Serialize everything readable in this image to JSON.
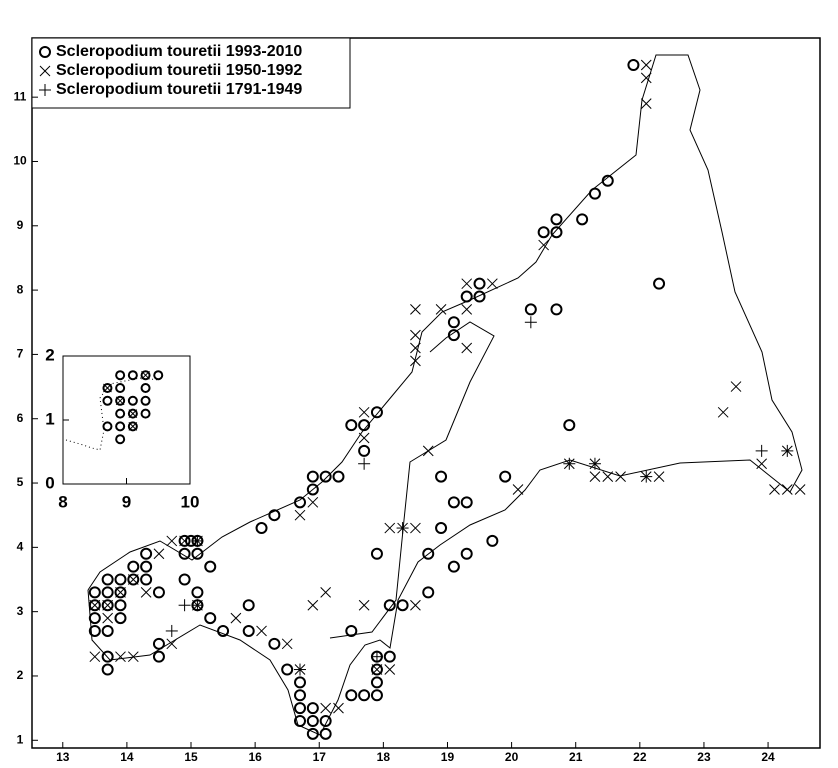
{
  "chart_data": [
    {
      "type": "scatter",
      "xlim": [
        12.52,
        24.81
      ],
      "ylim": [
        0.88,
        11.92
      ],
      "xticks": [
        13,
        14,
        15,
        16,
        17,
        18,
        19,
        20,
        21,
        22,
        23,
        24
      ],
      "yticks": [
        1,
        2,
        3,
        4,
        5,
        6,
        7,
        8,
        9,
        10,
        11
      ],
      "legend": "upper left",
      "series": [
        {
          "name": "Scleropodium touretii 1993-2010",
          "color": "#000000",
          "marker": "o",
          "x": [
            21.9,
            21.5,
            21.3,
            21.1,
            20.7,
            20.7,
            20.5,
            22.3,
            19.5,
            19.3,
            19.5,
            20.3,
            20.7,
            19.1,
            19.1,
            20.9,
            18.9,
            19.9,
            19.1,
            19.3,
            18.9,
            19.7,
            19.3,
            18.7,
            17.9,
            19.1,
            18.7,
            18.1,
            18.3,
            17.9,
            17.5,
            17.7,
            17.7,
            17.3,
            17.1,
            16.9,
            16.9,
            16.7,
            16.3,
            16.1,
            15.3,
            15.1,
            15.0,
            14.9,
            14.9,
            15.1,
            14.9,
            15.1,
            14.5,
            14.3,
            14.3,
            14.3,
            14.1,
            14.1,
            13.9,
            13.9,
            13.9,
            13.9,
            13.7,
            13.7,
            13.7,
            13.7,
            13.5,
            13.5,
            13.5,
            13.5,
            13.7,
            13.7,
            14.5,
            14.5,
            15.1,
            15.3,
            15.5,
            15.9,
            15.9,
            16.3,
            16.5,
            16.7,
            16.7,
            16.7,
            16.7,
            16.9,
            16.9,
            16.9,
            17.1,
            17.1,
            17.5,
            17.7,
            17.9,
            17.9,
            17.9,
            17.9,
            18.1,
            17.5
          ],
          "y": [
            11.5,
            9.7,
            9.5,
            9.1,
            9.1,
            8.9,
            8.9,
            8.1,
            8.1,
            7.9,
            7.9,
            7.7,
            7.7,
            7.5,
            7.3,
            5.9,
            5.1,
            5.1,
            4.7,
            4.7,
            4.3,
            4.1,
            3.9,
            3.9,
            3.9,
            3.7,
            3.3,
            3.1,
            3.1,
            6.1,
            5.9,
            5.9,
            5.5,
            5.1,
            5.1,
            5.1,
            4.9,
            4.7,
            4.5,
            4.3,
            3.7,
            4.1,
            4.1,
            4.1,
            3.9,
            3.9,
            3.5,
            3.3,
            3.3,
            3.9,
            3.7,
            3.5,
            3.7,
            3.5,
            3.5,
            3.3,
            3.1,
            2.9,
            3.5,
            3.3,
            3.1,
            2.7,
            3.3,
            3.1,
            2.9,
            2.7,
            2.3,
            2.1,
            2.5,
            2.3,
            3.1,
            2.9,
            2.7,
            2.7,
            3.1,
            2.5,
            2.1,
            1.9,
            1.7,
            1.5,
            1.3,
            1.5,
            1.3,
            1.1,
            1.3,
            1.1,
            1.7,
            1.7,
            1.7,
            1.9,
            2.1,
            2.3,
            2.3,
            2.7
          ]
        },
        {
          "name": "Scleropodium touretii 1950-1992",
          "color": "#000000",
          "marker": "x",
          "x": [
            22.1,
            22.1,
            22.1,
            20.5,
            19.3,
            19.7,
            19.3,
            18.5,
            18.9,
            18.5,
            18.5,
            19.3,
            18.5,
            23.5,
            23.3,
            17.7,
            17.7,
            18.7,
            20.9,
            21.3,
            21.3,
            21.5,
            21.7,
            22.1,
            22.3,
            23.9,
            24.1,
            24.3,
            24.5,
            24.3,
            20.1,
            18.1,
            18.3,
            18.5,
            18.5,
            17.7,
            17.1,
            16.9,
            16.7,
            16.9,
            15.1,
            14.9,
            14.7,
            14.5,
            15.1,
            15.7,
            16.1,
            16.5,
            16.7,
            17.1,
            17.3,
            17.9,
            18.1,
            14.1,
            13.9,
            13.5,
            14.7,
            13.5,
            13.7,
            13.9,
            14.1,
            14.3,
            13.7
          ],
          "y": [
            11.5,
            11.3,
            10.9,
            8.7,
            8.1,
            8.1,
            7.7,
            7.7,
            7.7,
            7.3,
            7.1,
            7.1,
            6.9,
            6.5,
            6.1,
            6.1,
            5.7,
            5.5,
            5.3,
            5.3,
            5.1,
            5.1,
            5.1,
            5.1,
            5.1,
            5.3,
            4.9,
            4.9,
            4.9,
            5.5,
            4.9,
            4.3,
            4.3,
            4.3,
            3.1,
            3.1,
            3.3,
            3.1,
            4.5,
            4.7,
            4.1,
            4.1,
            4.1,
            3.9,
            3.1,
            2.9,
            2.7,
            2.5,
            2.1,
            1.5,
            1.5,
            2.1,
            2.1,
            2.3,
            2.3,
            2.3,
            2.5,
            3.1,
            3.1,
            3.3,
            3.5,
            3.3,
            2.9
          ]
        },
        {
          "name": "Scleropodium touretii 1791-1949",
          "color": "#000000",
          "marker": "+",
          "x": [
            20.3,
            17.7,
            20.9,
            21.3,
            22.1,
            23.9,
            24.3,
            18.3,
            15.1,
            14.9,
            14.7,
            16.7,
            17.9,
            15.1
          ],
          "y": [
            7.5,
            5.3,
            5.3,
            5.3,
            5.1,
            5.5,
            5.5,
            4.3,
            3.1,
            3.1,
            2.7,
            2.1,
            2.3,
            4.1
          ]
        }
      ]
    },
    {
      "type": "scatter",
      "xlim": [
        8,
        10
      ],
      "ylim": [
        0,
        2
      ],
      "xticks": [
        8,
        9,
        10
      ],
      "yticks": [
        0,
        1,
        2
      ],
      "series": [
        {
          "color": "#000000",
          "marker": "o",
          "x": [
            8.9,
            9.1,
            9.3,
            9.5,
            8.7,
            8.9,
            9.3,
            8.7,
            8.9,
            9.1,
            9.3,
            8.9,
            9.1,
            9.3,
            8.7,
            8.9,
            9.1,
            8.9
          ],
          "y": [
            1.7,
            1.7,
            1.7,
            1.7,
            1.5,
            1.5,
            1.5,
            1.3,
            1.3,
            1.3,
            1.3,
            1.1,
            1.1,
            1.1,
            0.9,
            0.9,
            0.9,
            0.7
          ]
        },
        {
          "color": "#000000",
          "marker": "x",
          "x": [
            8.7,
            8.9,
            9.1,
            9.1,
            9.3
          ],
          "y": [
            1.5,
            1.3,
            1.1,
            0.9,
            1.7
          ]
        }
      ]
    }
  ]
}
